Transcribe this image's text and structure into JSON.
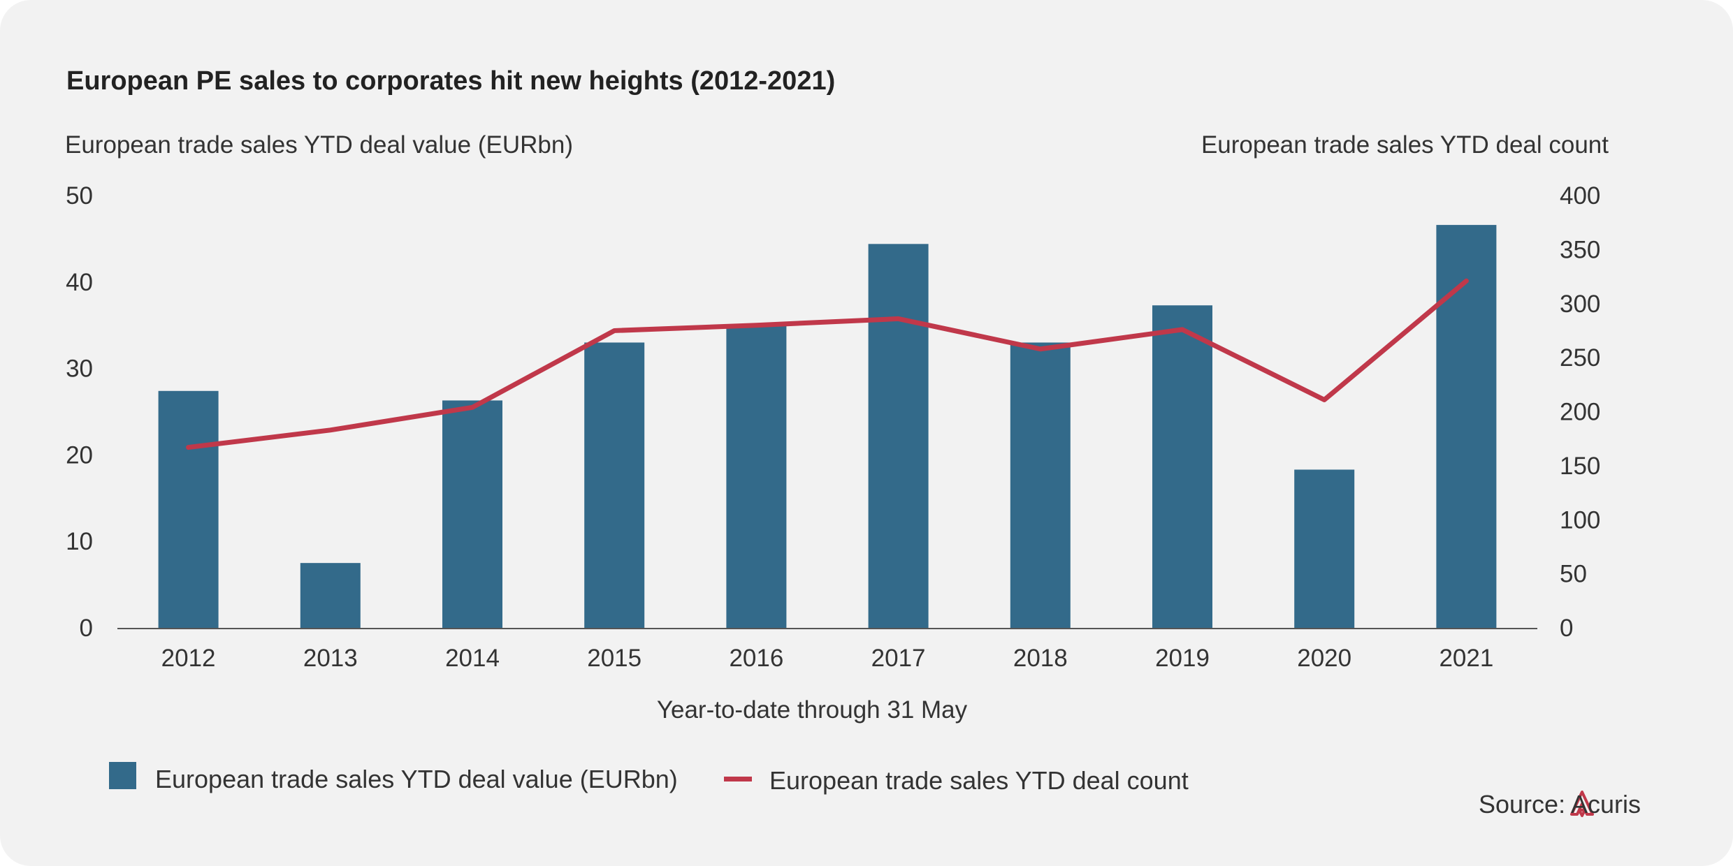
{
  "chart_data": {
    "type": "bar",
    "title": "European PE sales to corporates hit new heights (2012-2021)",
    "xlabel": "Year-to-date through 31 May",
    "ylabel_left": "European trade sales YTD deal value (EURbn)",
    "ylabel_right": "European trade sales YTD deal count",
    "categories": [
      "2012",
      "2013",
      "2014",
      "2015",
      "2016",
      "2017",
      "2018",
      "2019",
      "2020",
      "2021"
    ],
    "y_left_ticks": [
      0,
      10,
      20,
      30,
      40,
      50
    ],
    "y_right_ticks": [
      0,
      50,
      100,
      150,
      200,
      250,
      300,
      350,
      400
    ],
    "ylim_left": [
      0,
      50
    ],
    "ylim_right": [
      0,
      400
    ],
    "grid": false,
    "legend_position": "bottom-left",
    "series": [
      {
        "name": "European trade sales YTD deal value (EURbn)",
        "type": "bar",
        "axis": "left",
        "color": "#336a8a",
        "values": [
          27.4,
          7.5,
          26.3,
          33.0,
          35.1,
          44.4,
          33.0,
          37.3,
          18.3,
          46.6
        ]
      },
      {
        "name": "European trade sales YTD deal count",
        "type": "line",
        "axis": "right",
        "color": "#c0384a",
        "values": [
          167,
          183,
          204,
          275,
          280,
          286,
          258,
          276,
          211,
          321
        ]
      }
    ]
  },
  "source": {
    "label": "Source:",
    "brand": "Acuris",
    "logo_icon": "acuris-logo-icon",
    "logo_color": "#c0384a"
  },
  "colors": {
    "background": "#f2f2f2",
    "bar": "#336a8a",
    "line": "#c0384a",
    "axis": "#555555"
  }
}
